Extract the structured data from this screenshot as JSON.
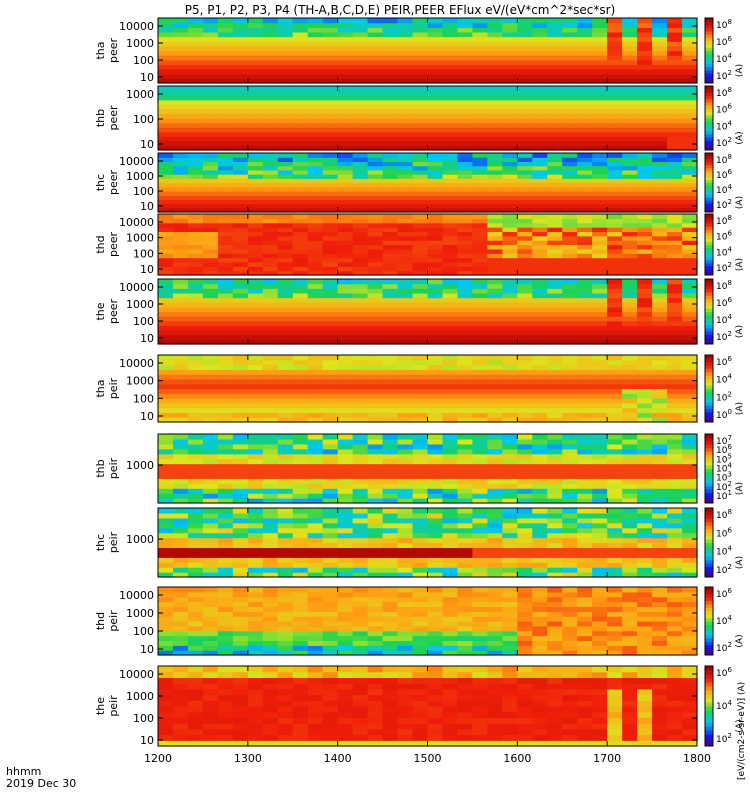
{
  "chart_data": {
    "type": "heatmap",
    "title": "P5, P1, P2, P3, P4 (TH-A,B,C,D,E) PEIR,PEER EFlux eV/(eV*cm^2*sec*sr)",
    "x_axis": {
      "ticks": [
        "1200",
        "1300",
        "1400",
        "1500",
        "1600",
        "1700",
        "1800"
      ],
      "range": [
        1200,
        1800
      ],
      "label_line1": "hhmm",
      "label_line2": "2019 Dec 30"
    },
    "colorbar_label": "[eV/(cm2-s-sr-eV)] (A)",
    "colorbar_label_short": "(A)",
    "panels": [
      {
        "id": "tha-peer",
        "label1": "tha",
        "label2": "peer",
        "yticks": [
          "10",
          "100",
          "1000",
          "10000"
        ],
        "cticks": [
          "10^8",
          "10^6",
          "10^4",
          "10^2"
        ],
        "profile": "peer_a",
        "hole": true
      },
      {
        "id": "thb-peer",
        "label1": "thb",
        "label2": "peer",
        "yticks": [
          "10",
          "100",
          "1000"
        ],
        "cticks": [
          "10^8",
          "10^6",
          "10^4",
          "10^2"
        ],
        "profile": "peer_b",
        "hole": false
      },
      {
        "id": "thc-peer",
        "label1": "thc",
        "label2": "peer",
        "yticks": [
          "10",
          "100",
          "1000",
          "10000"
        ],
        "cticks": [
          "10^8",
          "10^6",
          "10^4",
          "10^2"
        ],
        "profile": "peer_c",
        "hole": false
      },
      {
        "id": "thd-peer",
        "label1": "thd",
        "label2": "peer",
        "yticks": [
          "10",
          "100",
          "1000",
          "10000"
        ],
        "cticks": [
          "10^8",
          "10^6",
          "10^4",
          "10^2"
        ],
        "profile": "peer_d",
        "hole": false
      },
      {
        "id": "the-peer",
        "label1": "the",
        "label2": "peer",
        "yticks": [
          "10",
          "100",
          "1000",
          "10000"
        ],
        "cticks": [
          "10^8",
          "10^6",
          "10^4",
          "10^2"
        ],
        "profile": "peer_e",
        "hole": true
      },
      {
        "id": "tha-peir",
        "label1": "tha",
        "label2": "peir",
        "yticks": [
          "10",
          "100",
          "1000",
          "10000"
        ],
        "cticks": [
          "10^6",
          "10^4",
          "10^2",
          "10^0"
        ],
        "profile": "peir_a",
        "hole": true
      },
      {
        "id": "thb-peir",
        "label1": "thb",
        "label2": "peir",
        "yticks": [
          "1000"
        ],
        "cticks": [
          "10^7",
          "10^6",
          "10^5",
          "10^4",
          "10^3",
          "10^2",
          "10^1"
        ],
        "profile": "peir_b",
        "hole": false
      },
      {
        "id": "thc-peir",
        "label1": "thc",
        "label2": "peir",
        "yticks": [
          "1000"
        ],
        "cticks": [
          "10^8",
          "10^6",
          "10^4",
          "10^2"
        ],
        "profile": "peir_c",
        "hole": false
      },
      {
        "id": "thd-peir",
        "label1": "thd",
        "label2": "peir",
        "yticks": [
          "10",
          "100",
          "1000",
          "10000"
        ],
        "cticks": [
          "10^6",
          "10^4",
          "10^2"
        ],
        "profile": "peir_d",
        "hole": false
      },
      {
        "id": "the-peir",
        "label1": "the",
        "label2": "peir",
        "yticks": [
          "10",
          "100",
          "1000",
          "10000"
        ],
        "cticks": [
          "10^6",
          "10^4",
          "10^2"
        ],
        "profile": "peir_e",
        "hole": true
      }
    ]
  }
}
